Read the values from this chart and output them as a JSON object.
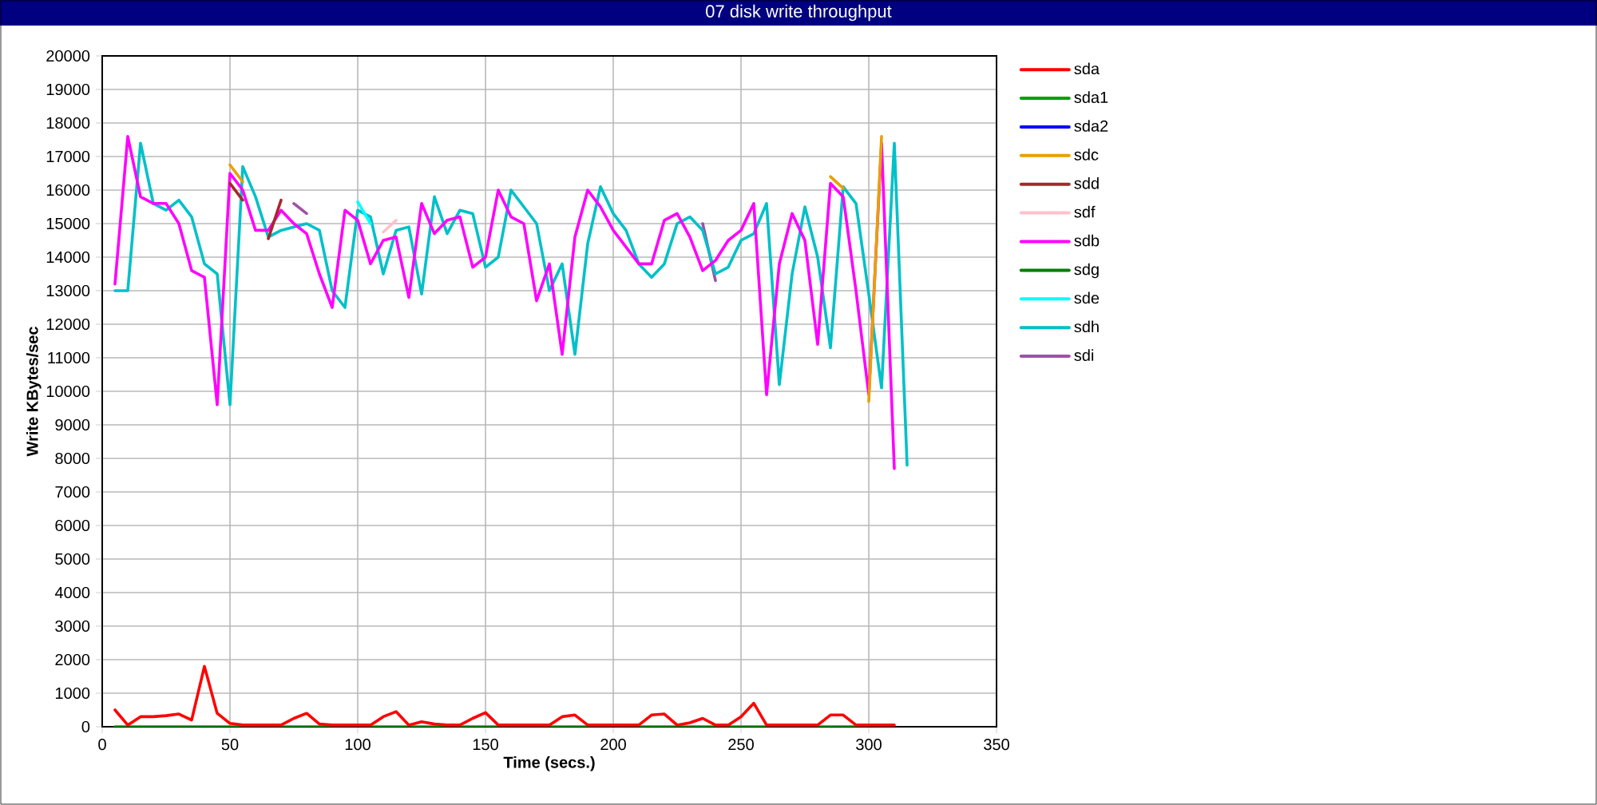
{
  "chart_data": {
    "type": "line",
    "title": "07 disk write throughput",
    "xlabel": "Time (secs.)",
    "ylabel": "Write KBytes/sec",
    "x": [
      5,
      10,
      15,
      20,
      25,
      30,
      35,
      40,
      45,
      50,
      55,
      60,
      65,
      70,
      75,
      80,
      85,
      90,
      95,
      100,
      105,
      110,
      115,
      120,
      125,
      130,
      135,
      140,
      145,
      150,
      155,
      160,
      165,
      170,
      175,
      180,
      185,
      190,
      195,
      200,
      205,
      210,
      215,
      220,
      225,
      230,
      235,
      240,
      245,
      250,
      255,
      260,
      265,
      270,
      275,
      280,
      285,
      290,
      295,
      300,
      305,
      310
    ],
    "xlim": [
      0,
      350
    ],
    "xticks": [
      0,
      50,
      100,
      150,
      200,
      250,
      300,
      350
    ],
    "ylim": [
      0,
      20000
    ],
    "yticks": [
      0,
      1000,
      2000,
      3000,
      4000,
      5000,
      6000,
      7000,
      8000,
      9000,
      10000,
      11000,
      12000,
      13000,
      14000,
      15000,
      16000,
      17000,
      18000,
      19000,
      20000
    ],
    "grid": true,
    "legend": "right",
    "series": [
      {
        "name": "sda",
        "color": "#ff0000",
        "values": [
          500,
          50,
          300,
          300,
          330,
          380,
          200,
          1800,
          400,
          100,
          50,
          50,
          50,
          50,
          250,
          400,
          80,
          50,
          50,
          50,
          50,
          300,
          450,
          50,
          150,
          80,
          50,
          50,
          250,
          420,
          50,
          50,
          50,
          50,
          50,
          300,
          350,
          50,
          50,
          50,
          50,
          50,
          350,
          380,
          50,
          120,
          250,
          50,
          50,
          300,
          700,
          50,
          50,
          50,
          50,
          50,
          350,
          350,
          50,
          50,
          50,
          50
        ]
      },
      {
        "name": "sda1",
        "color": "#00a000",
        "values": [
          0,
          0,
          0,
          0,
          0,
          0,
          0,
          0,
          0,
          0,
          0,
          0,
          0,
          0,
          0,
          0,
          0,
          0,
          0,
          0,
          0,
          0,
          0,
          0,
          0,
          0,
          0,
          0,
          0,
          0,
          0,
          0,
          0,
          0,
          0,
          0,
          0,
          0,
          0,
          0,
          0,
          0,
          0,
          0,
          0,
          0,
          0,
          0,
          0,
          0,
          0,
          0,
          0,
          0,
          0,
          0,
          0,
          0,
          0,
          0,
          null,
          null
        ]
      },
      {
        "name": "sda2",
        "color": "#0000ff",
        "values": [
          null,
          null,
          null,
          null,
          null,
          null,
          null,
          null,
          null,
          null,
          null,
          null,
          null,
          null,
          null,
          null,
          null,
          null,
          null,
          null,
          null,
          null,
          null,
          null,
          null,
          null,
          null,
          null,
          null,
          null,
          null,
          null,
          null,
          null,
          null,
          null,
          null,
          null,
          null,
          null,
          null,
          null,
          null,
          null,
          null,
          null,
          null,
          null,
          null,
          null,
          null,
          null,
          null,
          null,
          null,
          null,
          null,
          null,
          null,
          null,
          null,
          null
        ]
      },
      {
        "name": "sdc",
        "color": "#e8a000",
        "x": [
          50,
          55,
          60,
          285,
          290,
          295,
          300,
          305
        ],
        "values": [
          16750,
          16250,
          null,
          16400,
          16050,
          null,
          9700,
          17600
        ]
      },
      {
        "name": "sdd",
        "color": "#a52a2a",
        "x": [
          50,
          55,
          60,
          65,
          70
        ],
        "values": [
          16200,
          15700,
          null,
          14550,
          15700
        ]
      },
      {
        "name": "sdf",
        "color": "#ffc0cb",
        "x": [
          110,
          115
        ],
        "values": [
          14750,
          15100
        ]
      },
      {
        "name": "sdb",
        "color": "#ff00ff",
        "values": [
          13200,
          17600,
          15800,
          15600,
          15600,
          15000,
          13600,
          13400,
          9600,
          16500,
          16000,
          14800,
          14800,
          15400,
          15000,
          14700,
          13500,
          12500,
          15400,
          15100,
          13800,
          14500,
          14600,
          12800,
          15600,
          14700,
          15100,
          15200,
          13700,
          14000,
          16000,
          15200,
          15000,
          12700,
          13800,
          11100,
          14600,
          16000,
          15500,
          14800,
          14300,
          13800,
          13800,
          15100,
          15300,
          14600,
          13600,
          13900,
          14500,
          14800,
          15600,
          9900,
          13800,
          15300,
          14500,
          11400,
          16200,
          15800,
          13000,
          9900,
          17400,
          7700
        ]
      },
      {
        "name": "sdg",
        "color": "#008000",
        "values": [
          null,
          null,
          null,
          null,
          null,
          null,
          null,
          null,
          null,
          null,
          null,
          null,
          null,
          null,
          null,
          null,
          null,
          null,
          null,
          null,
          null,
          null,
          null,
          null,
          null,
          null,
          null,
          null,
          null,
          null,
          null,
          null,
          null,
          null,
          null,
          null,
          null,
          null,
          null,
          null,
          null,
          null,
          null,
          null,
          null,
          null,
          null,
          null,
          null,
          null,
          null,
          null,
          null,
          null,
          null,
          null,
          null,
          null,
          null,
          null,
          null,
          null
        ]
      },
      {
        "name": "sde",
        "color": "#00ffff",
        "x": [
          100,
          105
        ],
        "values": [
          15650,
          15000
        ]
      },
      {
        "name": "sdh",
        "color": "#00c0c8",
        "x": [
          5,
          10,
          15,
          20,
          25,
          30,
          35,
          40,
          45,
          50,
          55,
          60,
          65,
          70,
          75,
          80,
          85,
          90,
          95,
          100,
          105,
          110,
          115,
          120,
          125,
          130,
          135,
          140,
          145,
          150,
          155,
          160,
          165,
          170,
          175,
          180,
          185,
          190,
          195,
          200,
          205,
          210,
          215,
          220,
          225,
          230,
          235,
          240,
          245,
          250,
          255,
          260,
          265,
          270,
          275,
          280,
          285,
          290,
          295,
          300,
          305,
          310,
          315
        ],
        "values": [
          13000,
          13000,
          17400,
          15600,
          15400,
          15700,
          15200,
          13800,
          13500,
          9600,
          16700,
          15800,
          14600,
          14800,
          14900,
          15000,
          14800,
          13000,
          12500,
          15400,
          15200,
          13500,
          14800,
          14900,
          12900,
          15800,
          14700,
          15400,
          15300,
          13700,
          14000,
          16000,
          15500,
          15000,
          13000,
          13800,
          11100,
          14400,
          16100,
          15300,
          14800,
          13800,
          13400,
          13800,
          15000,
          15200,
          14800,
          13500,
          13700,
          14500,
          14700,
          15600,
          10200,
          13500,
          15500,
          14000,
          11300,
          16100,
          15600,
          12900,
          10100,
          17400,
          7800
        ]
      },
      {
        "name": "sdi",
        "color": "#a050a8",
        "x": [
          75,
          80,
          85,
          235,
          240
        ],
        "values": [
          15600,
          15300,
          null,
          15000,
          13300
        ]
      }
    ]
  }
}
